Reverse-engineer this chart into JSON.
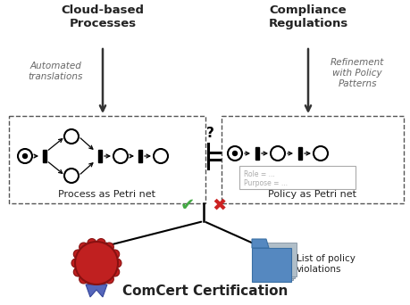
{
  "bg_color": "#ffffff",
  "title": "ComCert Certification",
  "box1_label": "Process as Petri net",
  "box2_label": "Policy as Petri net",
  "top_left_label": "Cloud-based\nProcesses",
  "top_right_label": "Compliance\nRegulations",
  "arrow_left_label": "Automated\ntranslations",
  "arrow_right_label": "Refinement\nwith Policy\nPatterns",
  "policy_annotation": "Role = ...\nPurpose = ...",
  "violation_label": "List of policy\nviolations",
  "question_mark": "?",
  "text_color": "#222222",
  "arrow_color": "#333333",
  "check_color": "#44aa44",
  "cross_color": "#cc2222",
  "seal_red": "#c02020",
  "seal_dark": "#881111",
  "ribbon_color": "#5566bb",
  "folder_back_color": "#a0b4c4",
  "folder_front_color": "#5588c0",
  "gray_text": "#888888"
}
